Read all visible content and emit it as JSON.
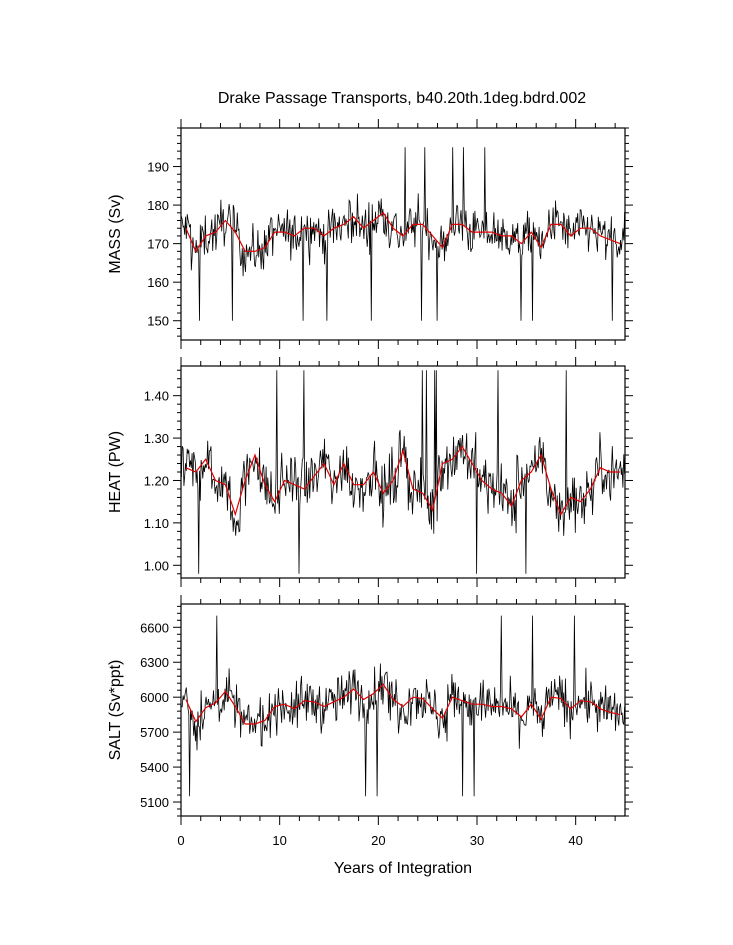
{
  "figure": {
    "title": "Drake Passage Transports, b40.20th.1deg.bdrd.002"
  },
  "chart_data": [
    {
      "type": "line",
      "ylabel": "MASS (Sv)",
      "xlabel": "",
      "xlim": [
        0,
        45
      ],
      "ylim": [
        145,
        200
      ],
      "yticks": [
        150,
        160,
        170,
        180,
        190
      ],
      "ytick_labels": [
        "150",
        "160",
        "170",
        "180",
        "190"
      ],
      "xticks": [
        0,
        10,
        20,
        30,
        40
      ],
      "xtick_labels": [],
      "grid": false,
      "legend": "none",
      "monthly_range": [
        150,
        195
      ],
      "series": [
        {
          "color": "#000000",
          "resolution": "monthly",
          "values": []
        },
        {
          "color": "#e00000",
          "resolution": "annual mean",
          "x": [
            0.5,
            1.5,
            2.5,
            3.5,
            4.5,
            5.5,
            6.5,
            7.5,
            8.5,
            9.5,
            10.5,
            11.5,
            12.5,
            13.5,
            14.5,
            15.5,
            16.5,
            17.5,
            18.5,
            19.5,
            20.5,
            21.5,
            22.5,
            23.5,
            24.5,
            25.5,
            26.5,
            27.5,
            28.5,
            29.5,
            30.5,
            31.5,
            32.5,
            33.5,
            34.5,
            35.5,
            36.5,
            37.5,
            38.5,
            39.5,
            40.5,
            41.5,
            42.5,
            43.5,
            44.5
          ],
          "values": [
            174,
            168,
            172,
            173,
            176,
            173,
            168,
            168,
            169,
            173,
            173,
            172,
            174,
            174,
            172,
            174,
            175,
            177,
            174,
            176,
            178,
            174,
            172,
            175,
            175,
            172,
            169,
            175,
            175,
            173,
            173,
            173,
            172,
            172,
            170,
            173,
            169,
            175,
            175,
            172,
            174,
            174,
            172,
            171,
            170
          ]
        }
      ]
    },
    {
      "type": "line",
      "ylabel": "HEAT (PW)",
      "xlabel": "",
      "xlim": [
        0,
        45
      ],
      "ylim": [
        0.97,
        1.47
      ],
      "yticks": [
        1.0,
        1.1,
        1.2,
        1.3,
        1.4
      ],
      "ytick_labels": [
        "1.00",
        "1.10",
        "1.20",
        "1.30",
        "1.40"
      ],
      "xticks": [
        0,
        10,
        20,
        30,
        40
      ],
      "xtick_labels": [],
      "grid": false,
      "legend": "none",
      "monthly_range": [
        0.98,
        1.46
      ],
      "series": [
        {
          "color": "#000000",
          "resolution": "monthly",
          "values": []
        },
        {
          "color": "#e00000",
          "resolution": "annual mean",
          "x": [
            0.5,
            1.5,
            2.5,
            3.5,
            4.5,
            5.5,
            6.5,
            7.5,
            8.5,
            9.5,
            10.5,
            11.5,
            12.5,
            13.5,
            14.5,
            15.5,
            16.5,
            17.5,
            18.5,
            19.5,
            20.5,
            21.5,
            22.5,
            23.5,
            24.5,
            25.5,
            26.5,
            27.5,
            28.5,
            29.5,
            30.5,
            31.5,
            32.5,
            33.5,
            34.5,
            35.5,
            36.5,
            37.5,
            38.5,
            39.5,
            40.5,
            41.5,
            42.5,
            43.5,
            44.5
          ],
          "values": [
            1.23,
            1.22,
            1.25,
            1.2,
            1.19,
            1.12,
            1.2,
            1.26,
            1.19,
            1.15,
            1.2,
            1.19,
            1.18,
            1.21,
            1.24,
            1.19,
            1.24,
            1.19,
            1.19,
            1.22,
            1.17,
            1.2,
            1.27,
            1.18,
            1.17,
            1.13,
            1.24,
            1.25,
            1.28,
            1.24,
            1.2,
            1.18,
            1.17,
            1.14,
            1.2,
            1.22,
            1.26,
            1.18,
            1.12,
            1.16,
            1.15,
            1.18,
            1.23,
            1.22,
            1.22
          ]
        }
      ]
    },
    {
      "type": "line",
      "ylabel": "SALT (Sv*ppt)",
      "xlabel": "Years of Integration",
      "xlim": [
        0,
        45
      ],
      "ylim": [
        4980,
        6800
      ],
      "yticks": [
        5100,
        5400,
        5700,
        6000,
        6300,
        6600
      ],
      "ytick_labels": [
        "5100",
        "5400",
        "5700",
        "6000",
        "6300",
        "6600"
      ],
      "xticks": [
        0,
        10,
        20,
        30,
        40
      ],
      "xtick_labels": [
        "0",
        "10",
        "20",
        "30",
        "40"
      ],
      "grid": false,
      "legend": "none",
      "monthly_range": [
        5150,
        6700
      ],
      "series": [
        {
          "color": "#000000",
          "resolution": "monthly",
          "values": []
        },
        {
          "color": "#e00000",
          "resolution": "annual mean",
          "x": [
            0.5,
            1.5,
            2.5,
            3.5,
            4.5,
            5.5,
            6.5,
            7.5,
            8.5,
            9.5,
            10.5,
            11.5,
            12.5,
            13.5,
            14.5,
            15.5,
            16.5,
            17.5,
            18.5,
            19.5,
            20.5,
            21.5,
            22.5,
            23.5,
            24.5,
            25.5,
            26.5,
            27.5,
            28.5,
            29.5,
            30.5,
            31.5,
            32.5,
            33.5,
            34.5,
            35.5,
            36.5,
            37.5,
            38.5,
            39.5,
            40.5,
            41.5,
            42.5,
            43.5,
            44.5
          ],
          "values": [
            5980,
            5790,
            5910,
            5950,
            6050,
            5920,
            5770,
            5770,
            5800,
            5920,
            5940,
            5900,
            5970,
            5960,
            5920,
            5960,
            6000,
            6070,
            5980,
            6030,
            6110,
            5980,
            5920,
            6000,
            5990,
            5900,
            5820,
            6000,
            5970,
            5940,
            5940,
            5920,
            5920,
            5900,
            5830,
            5940,
            5810,
            6000,
            5990,
            5900,
            5970,
            5960,
            5900,
            5870,
            5850
          ]
        }
      ]
    }
  ]
}
